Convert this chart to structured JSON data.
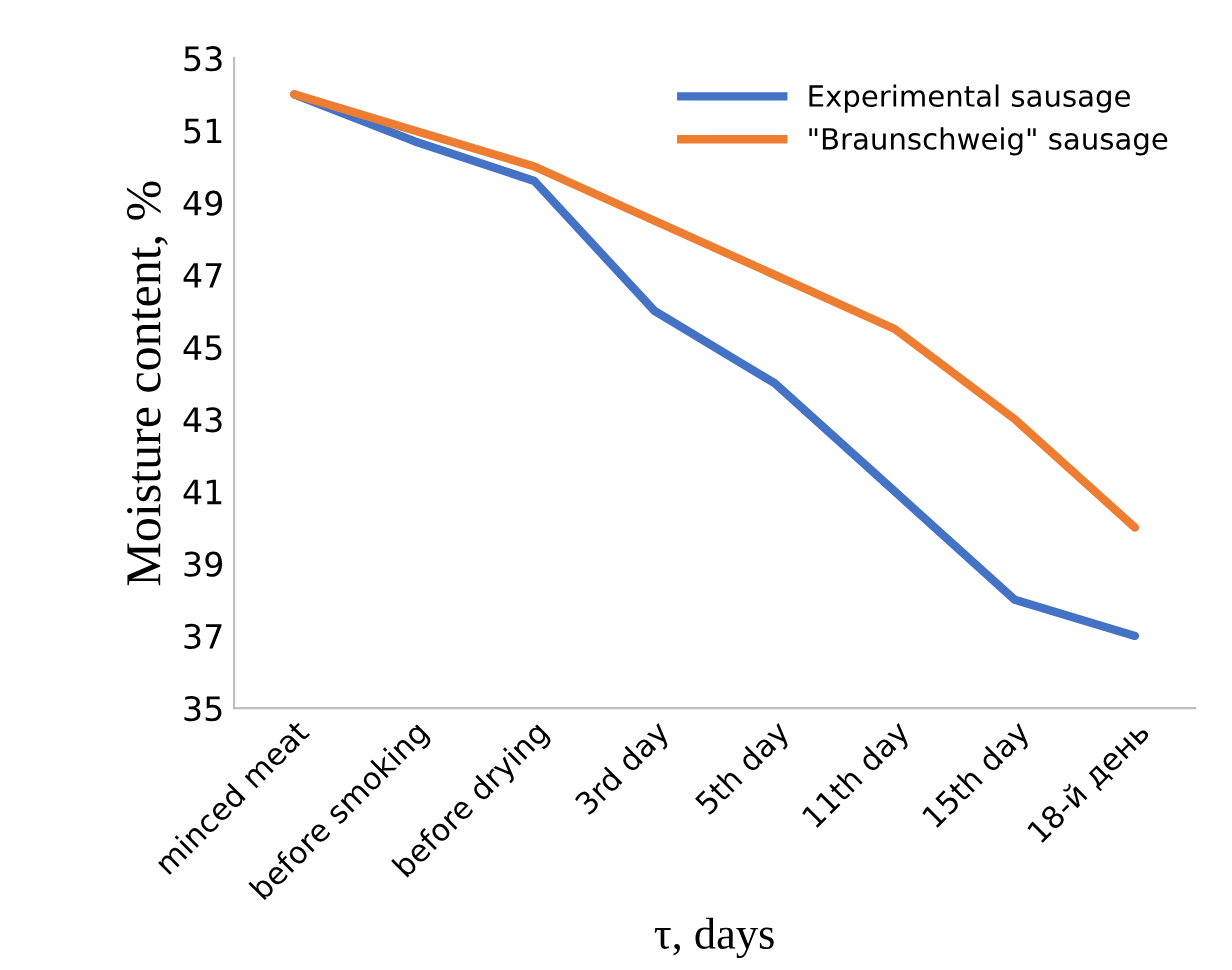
{
  "chart_data": {
    "type": "line",
    "xlabel": "τ, days",
    "ylabel": "Moisture content, %",
    "categories": [
      "minced meat",
      "before smoking",
      "before drying",
      "3rd day",
      "5th day",
      "11th day",
      "15th day",
      "18-й день"
    ],
    "series": [
      {
        "name": "Experimental sausage",
        "color": "#4472c4",
        "values": [
          52,
          50.7,
          49.6,
          46,
          44,
          41,
          38,
          37
        ]
      },
      {
        "name": "\"Braunschweig\" sausage",
        "color": "#ed7d31",
        "values": [
          52,
          51,
          50,
          48.5,
          47,
          45.5,
          43,
          40
        ]
      }
    ],
    "ylim": [
      35,
      53
    ],
    "yticks": [
      35,
      37,
      39,
      41,
      43,
      45,
      47,
      49,
      51,
      53
    ],
    "grid": false,
    "legend": "top right",
    "marker": "none",
    "line_style": "solid"
  }
}
